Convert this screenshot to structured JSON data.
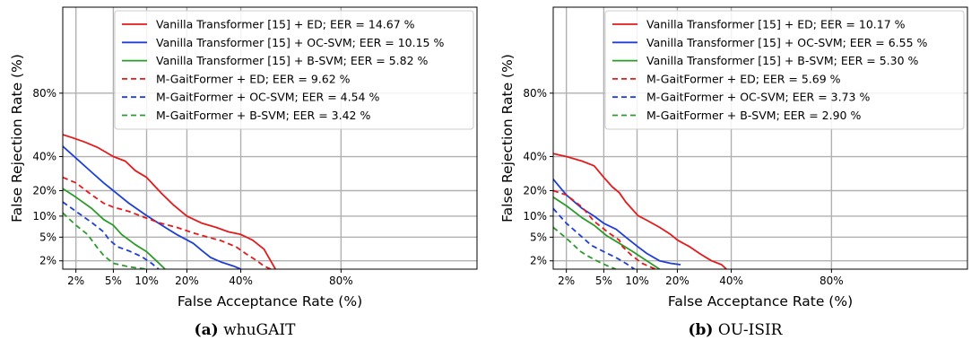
{
  "chart_data": [
    {
      "type": "line",
      "title": "",
      "xlabel": "False Acceptance Rate (%)",
      "ylabel": "False Rejection Rate (%)",
      "x_ticks": [
        "2%",
        "5%",
        "10%",
        "20%",
        "40%",
        "80%"
      ],
      "y_ticks": [
        "2%",
        "5%",
        "10%",
        "20%",
        "40%",
        "80%"
      ],
      "x_scale": "normal-deviate",
      "y_scale": "normal-deviate",
      "xlim": [
        1.4,
        99
      ],
      "ylim": [
        1.4,
        99
      ],
      "grid": true,
      "legend_position": "top-right",
      "caption_label": "(a)",
      "caption_text": "whuGAIT",
      "series": [
        {
          "name": "Vanilla Transformer [15] + ED; EER = 14.67 %",
          "color": "#e41a1c",
          "dash": "solid",
          "x": [
            1.4,
            1.8,
            2.5,
            3.5,
            5,
            6.5,
            8,
            10,
            13,
            16,
            20,
            25,
            30,
            35,
            40,
            45,
            50,
            55
          ],
          "y": [
            55,
            53,
            50,
            46,
            40,
            37,
            31,
            27,
            19,
            14,
            10,
            8,
            7,
            6,
            5.5,
            4.5,
            3.2,
            1.4
          ]
        },
        {
          "name": "Vanilla Transformer [15] + OC-SVM; EER = 10.15 %",
          "color": "#1f3fd6",
          "dash": "solid",
          "x": [
            1.4,
            2,
            3,
            4,
            5,
            7,
            10,
            14,
            17,
            22,
            25,
            28,
            32,
            37,
            40
          ],
          "y": [
            47,
            39,
            30,
            24,
            20,
            14.5,
            10.2,
            7,
            5.5,
            4,
            3,
            2.3,
            1.9,
            1.6,
            1.4
          ]
        },
        {
          "name": "Vanilla Transformer [15] + B-SVM; EER = 5.82 %",
          "color": "#2b9b2b",
          "dash": "solid",
          "x": [
            1.4,
            2,
            3,
            4,
            5,
            6,
            8,
            10,
            12,
            14
          ],
          "y": [
            21,
            17,
            12.5,
            9,
            7.5,
            5.5,
            3.8,
            2.9,
            2,
            1.4
          ]
        },
        {
          "name": "M-GaitFormer + ED; EER = 9.62 %",
          "color": "#e41a1c",
          "dash": "dashed",
          "x": [
            1.4,
            2,
            3,
            4,
            5,
            7,
            9.6,
            13,
            17,
            22,
            27,
            32,
            38,
            42,
            47,
            50,
            53
          ],
          "y": [
            27,
            24,
            18,
            14.5,
            13,
            11.5,
            9.6,
            8,
            7,
            5.8,
            5,
            4.4,
            3.5,
            2.7,
            2,
            1.6,
            1.4
          ]
        },
        {
          "name": "M-GaitFormer + OC-SVM; EER = 4.54 %",
          "color": "#1f3fd6",
          "dash": "dashed",
          "x": [
            1.4,
            2,
            3,
            4,
            4.54,
            5.5,
            7,
            9,
            11,
            12.5
          ],
          "y": [
            15,
            11.5,
            8.2,
            6,
            4.54,
            3.5,
            3,
            2.4,
            1.8,
            1.4
          ]
        },
        {
          "name": "M-GaitFormer + B-SVM; EER = 3.42 %",
          "color": "#2b9b2b",
          "dash": "dashed",
          "x": [
            1.4,
            2,
            2.7,
            3.42,
            4,
            5,
            7,
            10
          ],
          "y": [
            11,
            7.5,
            5.5,
            3.42,
            2.5,
            1.8,
            1.55,
            1.4
          ]
        }
      ]
    },
    {
      "type": "line",
      "title": "",
      "xlabel": "False Acceptance Rate (%)",
      "ylabel": "False Rejection Rate (%)",
      "x_ticks": [
        "2%",
        "5%",
        "10%",
        "20%",
        "40%",
        "80%"
      ],
      "y_ticks": [
        "2%",
        "5%",
        "10%",
        "20%",
        "40%",
        "80%"
      ],
      "x_scale": "normal-deviate",
      "y_scale": "normal-deviate",
      "xlim": [
        1.4,
        99
      ],
      "ylim": [
        1.4,
        99
      ],
      "grid": true,
      "legend_position": "top-right",
      "caption_label": "(b)",
      "caption_text": "OU-ISIR",
      "series": [
        {
          "name": "Vanilla Transformer [15] + ED; EER = 10.17 %",
          "color": "#e41a1c",
          "dash": "solid",
          "x": [
            1.4,
            2,
            3,
            4,
            5,
            6,
            7,
            8,
            10.17,
            12,
            15,
            18,
            20,
            24,
            28,
            32,
            36,
            38
          ],
          "y": [
            42,
            40,
            37,
            34,
            27,
            22,
            19,
            15,
            10.17,
            8.8,
            7,
            5.5,
            4.5,
            3.5,
            2.6,
            2,
            1.7,
            1.4
          ]
        },
        {
          "name": "Vanilla Transformer [15] + OC-SVM; EER = 6.55 %",
          "color": "#1f3fd6",
          "dash": "solid",
          "x": [
            1.4,
            2,
            3,
            4,
            5,
            6.55,
            8,
            10,
            12,
            15,
            18,
            21
          ],
          "y": [
            26,
            18,
            12.5,
            10,
            8,
            6.55,
            5,
            3.6,
            2.7,
            2,
            1.8,
            1.7
          ]
        },
        {
          "name": "Vanilla Transformer [15] + B-SVM; EER = 5.30 %",
          "color": "#2b9b2b",
          "dash": "solid",
          "x": [
            1.4,
            2,
            3,
            4,
            5.3,
            7,
            9,
            12,
            15
          ],
          "y": [
            17,
            13.5,
            9.5,
            7.5,
            5.3,
            4,
            3,
            2,
            1.4
          ]
        },
        {
          "name": "M-GaitFormer + ED; EER = 5.69 %",
          "color": "#e41a1c",
          "dash": "dashed",
          "x": [
            1.4,
            2,
            3,
            4,
            5.69,
            7,
            7.5,
            9,
            11,
            14
          ],
          "y": [
            20,
            18,
            13,
            8.5,
            5.69,
            4.5,
            3.5,
            2.5,
            1.8,
            1.4
          ]
        },
        {
          "name": "M-GaitFormer + OC-SVM; EER = 3.73 %",
          "color": "#1f3fd6",
          "dash": "dashed",
          "x": [
            1.4,
            2,
            3,
            3.73,
            5,
            6.5,
            8,
            9.5
          ],
          "y": [
            12.5,
            8,
            5,
            3.73,
            2.9,
            2.3,
            1.8,
            1.4
          ]
        },
        {
          "name": "M-GaitFormer + B-SVM; EER = 2.90 %",
          "color": "#2b9b2b",
          "dash": "dashed",
          "x": [
            1.4,
            2,
            2.9,
            3.5,
            4.5,
            5.5,
            6.5
          ],
          "y": [
            7,
            4.8,
            2.9,
            2.4,
            1.9,
            1.6,
            1.4
          ]
        }
      ]
    }
  ]
}
